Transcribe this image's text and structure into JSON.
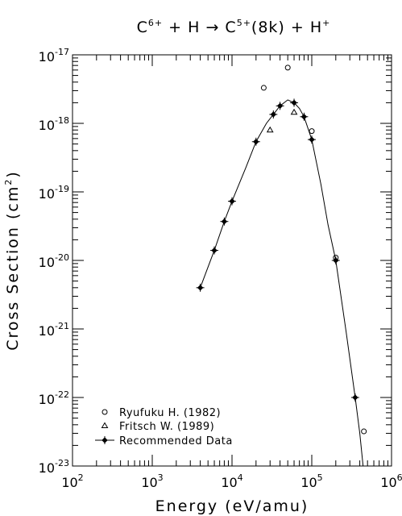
{
  "chart_data": {
    "type": "scatter",
    "title": {
      "segments": [
        {
          "text": "C",
          "sup": "6+"
        },
        {
          "text": " + H → C",
          "sup": "5+"
        },
        {
          "text": "(8k) + H",
          "sup": "+"
        }
      ]
    },
    "xlabel": "Energy (eV/amu)",
    "ylabel": {
      "text": "Cross Section (cm",
      "sup": "2",
      "after": ")"
    },
    "x_scale": "log",
    "y_scale": "log",
    "xlim": [
      100,
      1000000
    ],
    "ylim": [
      1e-23,
      1e-17
    ],
    "x_ticks": [
      {
        "value": 100,
        "base": "10",
        "exp": "2"
      },
      {
        "value": 1000,
        "base": "10",
        "exp": "3"
      },
      {
        "value": 10000,
        "base": "10",
        "exp": "4"
      },
      {
        "value": 100000,
        "base": "10",
        "exp": "5"
      },
      {
        "value": 1000000,
        "base": "10",
        "exp": "6"
      }
    ],
    "y_ticks": [
      {
        "value": 1e-23,
        "base": "10",
        "exp": "-23"
      },
      {
        "value": 1e-22,
        "base": "10",
        "exp": "-22"
      },
      {
        "value": 1e-21,
        "base": "10",
        "exp": "-21"
      },
      {
        "value": 1e-20,
        "base": "10",
        "exp": "-20"
      },
      {
        "value": 1e-19,
        "base": "10",
        "exp": "-19"
      },
      {
        "value": 1e-18,
        "base": "10",
        "exp": "-18"
      },
      {
        "value": 1e-17,
        "base": "10",
        "exp": "-17"
      }
    ],
    "grid": false,
    "legend_position": "bottom-left",
    "series": [
      {
        "name": "Ryufuku H. (1982)",
        "marker": "circle",
        "points": [
          {
            "x": 25000,
            "y": 3.3e-18
          },
          {
            "x": 50000,
            "y": 6.5e-18
          },
          {
            "x": 100000,
            "y": 7.7e-19
          },
          {
            "x": 200000,
            "y": 1.1e-20
          },
          {
            "x": 450000,
            "y": 3.2e-23
          }
        ]
      },
      {
        "name": "Fritsch W. (1989)",
        "marker": "triangle",
        "points": [
          {
            "x": 30000,
            "y": 8e-19
          },
          {
            "x": 60000,
            "y": 1.45e-18
          }
        ]
      },
      {
        "name": "Recommended Data",
        "marker": "plus-diamond",
        "line": true,
        "points": [
          {
            "x": 4000,
            "y": 4e-21
          },
          {
            "x": 6000,
            "y": 1.4e-20
          },
          {
            "x": 8000,
            "y": 3.7e-20
          },
          {
            "x": 10000,
            "y": 7.3e-20
          },
          {
            "x": 20000,
            "y": 5.4e-19
          },
          {
            "x": 33000,
            "y": 1.35e-18
          },
          {
            "x": 40000,
            "y": 1.8e-18
          },
          {
            "x": 60000,
            "y": 2e-18
          },
          {
            "x": 80000,
            "y": 1.25e-18
          },
          {
            "x": 100000,
            "y": 5.8e-19
          },
          {
            "x": 200000,
            "y": 1e-20
          },
          {
            "x": 350000,
            "y": 1e-22
          }
        ],
        "curve": [
          {
            "x": 4000,
            "y": 4e-21
          },
          {
            "x": 6000,
            "y": 1.4e-20
          },
          {
            "x": 8000,
            "y": 3.7e-20
          },
          {
            "x": 10000,
            "y": 7.3e-20
          },
          {
            "x": 15000,
            "y": 2.3e-19
          },
          {
            "x": 20000,
            "y": 5.4e-19
          },
          {
            "x": 27000,
            "y": 1e-18
          },
          {
            "x": 33000,
            "y": 1.35e-18
          },
          {
            "x": 40000,
            "y": 1.8e-18
          },
          {
            "x": 50000,
            "y": 2.2e-18
          },
          {
            "x": 60000,
            "y": 2e-18
          },
          {
            "x": 70000,
            "y": 1.65e-18
          },
          {
            "x": 80000,
            "y": 1.25e-18
          },
          {
            "x": 100000,
            "y": 5.8e-19
          },
          {
            "x": 130000,
            "y": 1.3e-19
          },
          {
            "x": 160000,
            "y": 3.3e-20
          },
          {
            "x": 200000,
            "y": 1e-20
          },
          {
            "x": 270000,
            "y": 9e-22
          },
          {
            "x": 350000,
            "y": 1e-22
          },
          {
            "x": 400000,
            "y": 3e-23
          },
          {
            "x": 440000,
            "y": 1e-23
          }
        ]
      }
    ]
  }
}
